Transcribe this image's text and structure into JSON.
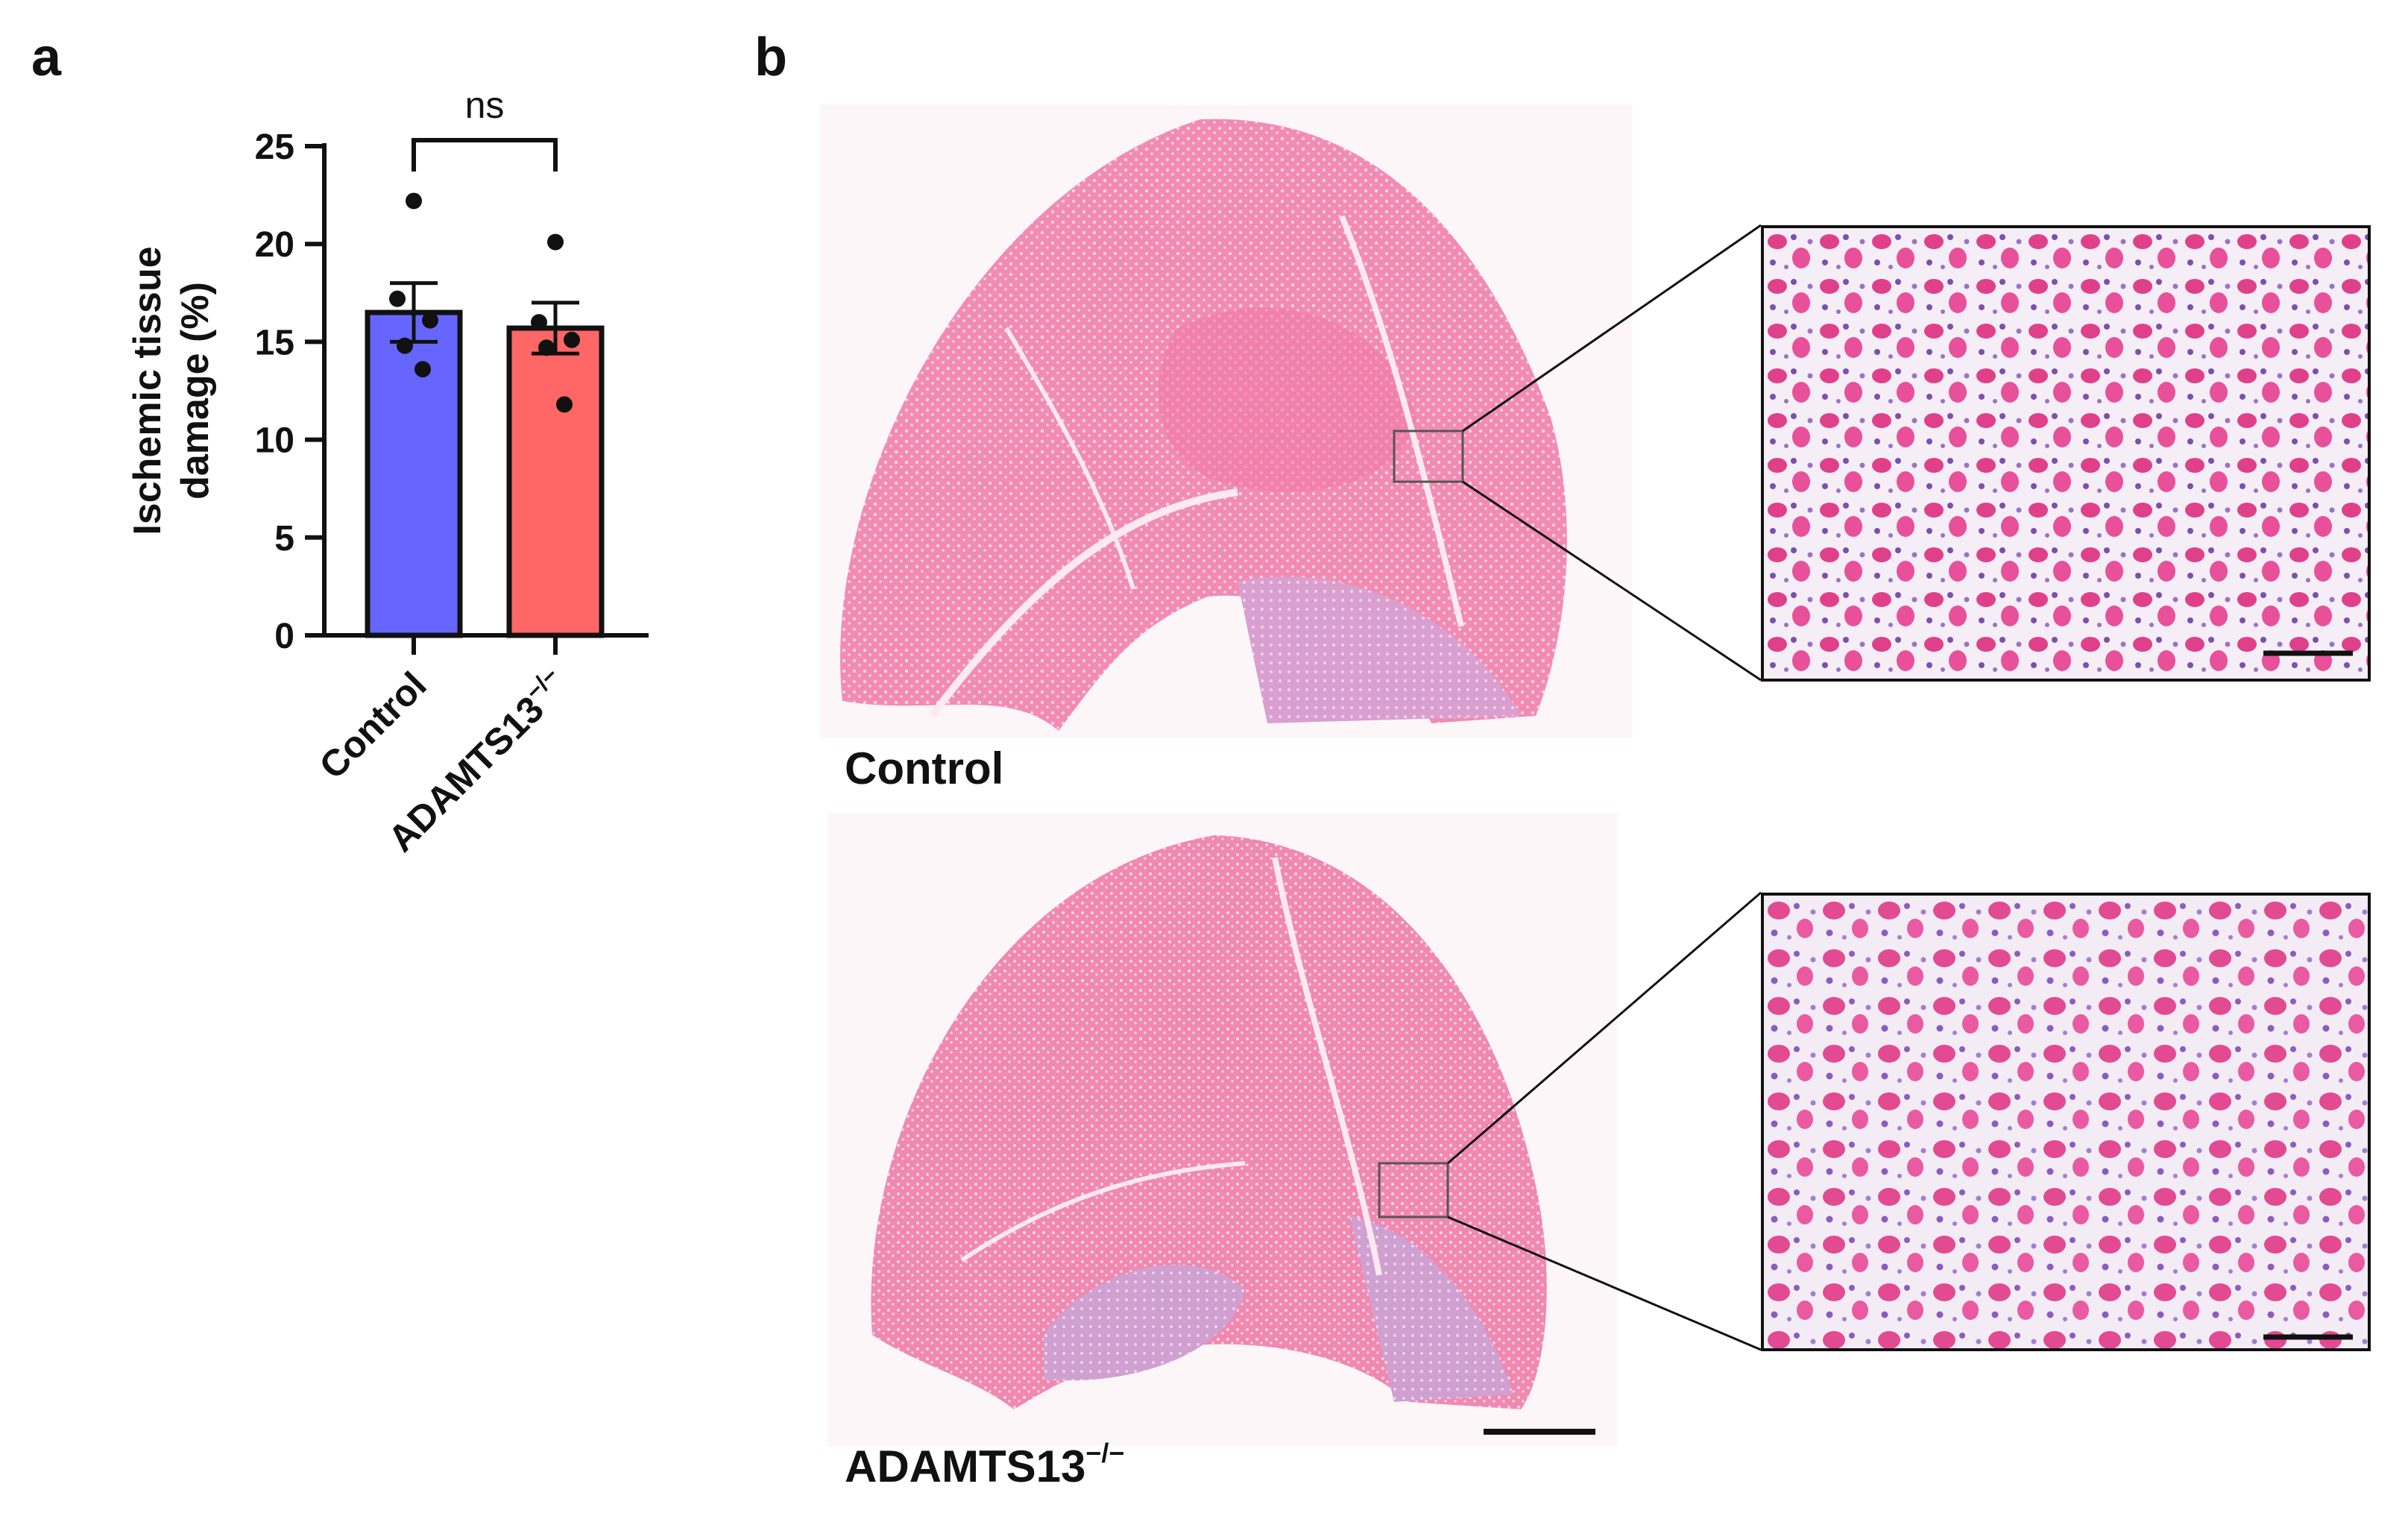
{
  "panels": {
    "a": {
      "label": "a"
    },
    "b": {
      "label": "b",
      "images": [
        {
          "caption": "Control"
        },
        {
          "caption_main": "ADAMTS13",
          "caption_sup": "−/−"
        }
      ]
    }
  },
  "chart_data": {
    "type": "bar",
    "categories": [
      "Control",
      "ADAMTS13−/−"
    ],
    "category_sup": [
      "",
      "−/−"
    ],
    "category_main": [
      "Control",
      "ADAMTS13"
    ],
    "values": [
      16.5,
      15.7
    ],
    "error_sem": [
      1.5,
      1.3
    ],
    "points": [
      [
        22.2,
        17.2,
        16.1,
        14.8,
        13.6
      ],
      [
        20.1,
        16.0,
        15.1,
        14.7,
        11.8
      ]
    ],
    "colors": [
      "#6666ff",
      "#ff6666"
    ],
    "ylabel": "Ischemic tissue damage (%)",
    "ylabel_line1": "Ischemic tissue",
    "ylabel_line2": "damage (%)",
    "ylim": [
      0,
      25
    ],
    "yticks": [
      "0",
      "5",
      "10",
      "15",
      "20",
      "25"
    ],
    "significance": {
      "label": "ns",
      "between": [
        0,
        1
      ]
    },
    "grid": false
  }
}
